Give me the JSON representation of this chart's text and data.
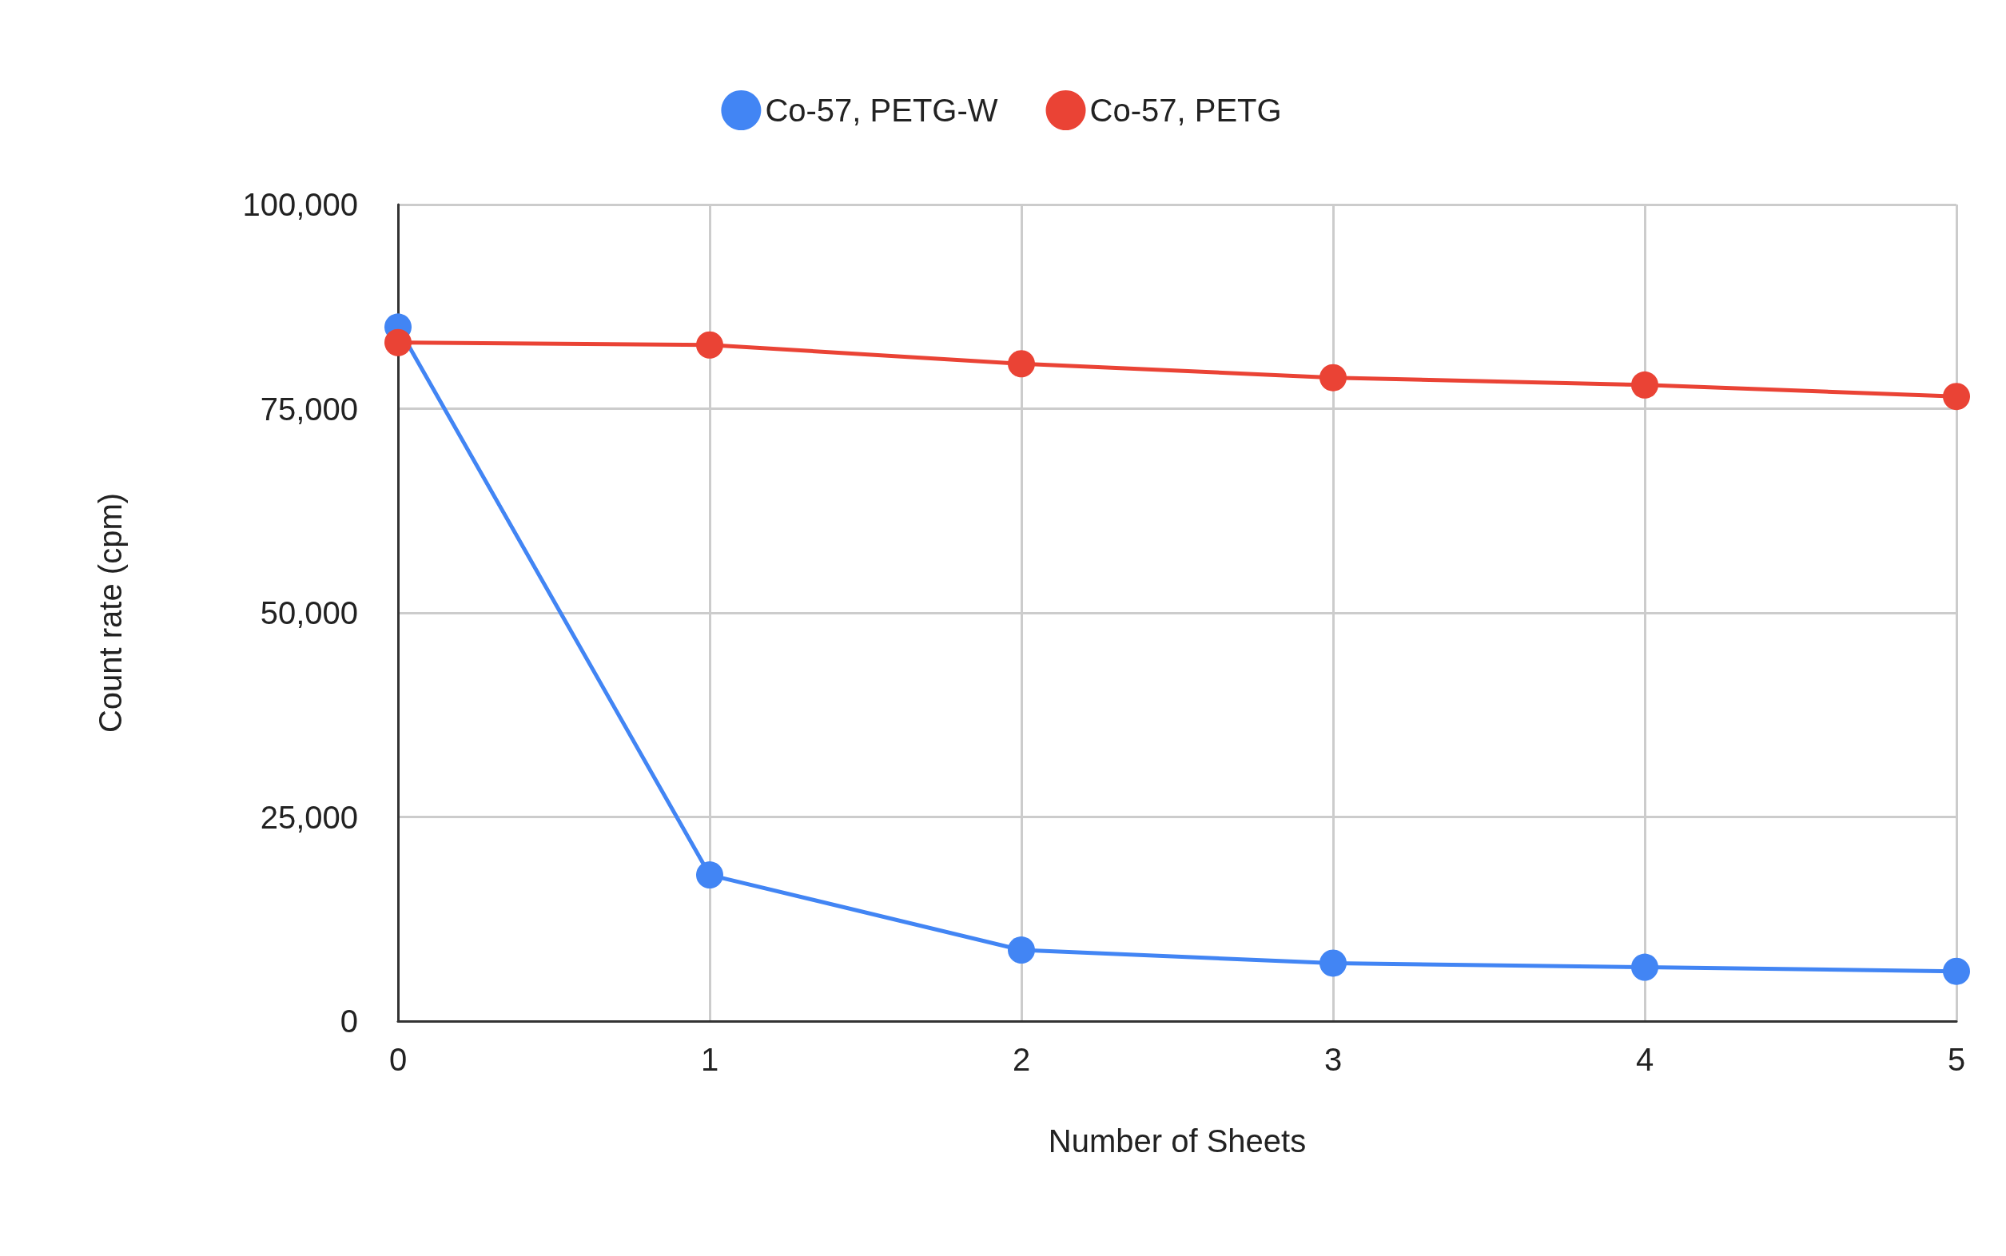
{
  "chart_data": {
    "type": "line",
    "xlabel": "Number of Sheets",
    "ylabel": "Count rate (cpm)",
    "x": [
      0,
      1,
      2,
      3,
      4,
      5
    ],
    "series": [
      {
        "name": "Co-57, PETG-W",
        "color": "#4285f4",
        "values": [
          85000,
          17900,
          8700,
          7100,
          6600,
          6100
        ]
      },
      {
        "name": "Co-57, PETG",
        "color": "#ea4335",
        "values": [
          83100,
          82800,
          80500,
          78800,
          77900,
          76500
        ]
      }
    ],
    "xlim": [
      0,
      5
    ],
    "xticks": [
      0,
      1,
      2,
      3,
      4,
      5
    ],
    "ylim": [
      0,
      100000
    ],
    "yticks": [
      0,
      {
        "value": 25000,
        "label": "25,000"
      },
      {
        "value": 50000,
        "label": "50,000"
      },
      {
        "value": 75000,
        "label": "75,000"
      },
      {
        "value": 100000,
        "label": "100,000"
      }
    ],
    "grid": true,
    "legend": "top",
    "marker": "circle",
    "line_style": "solid"
  }
}
